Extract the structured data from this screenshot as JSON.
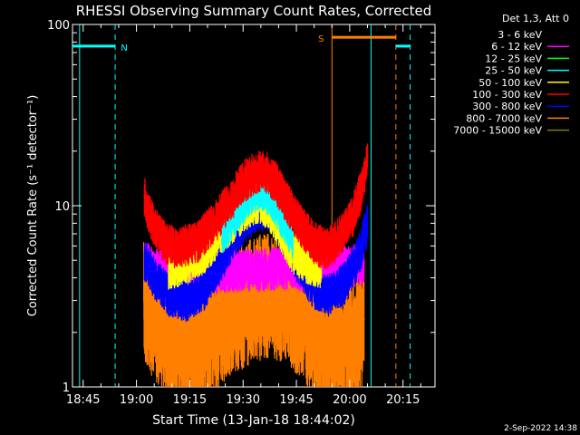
{
  "chart_data": {
    "type": "line",
    "title": "RHESSI Observing Summary Count Rates, Corrected",
    "xlabel": "Start Time (13-Jan-18 18:44:02)",
    "ylabel": "Corrected Count Rate (s⁻¹ detector⁻¹)",
    "x_unit": "minutes since 18:44:02 (axis labels show clock time)",
    "xlim": [
      "18:42",
      "20:24"
    ],
    "ylim": [
      1,
      100
    ],
    "y_scale": "log",
    "x_ticks": [
      "18:45",
      "19:00",
      "19:15",
      "19:30",
      "19:45",
      "20:00",
      "20:15"
    ],
    "y_ticks": [
      "1",
      "10",
      "100"
    ],
    "footer": "2-Sep-2022 14:38",
    "legend": {
      "header": "Det 1,3, Att 0",
      "placement": "top-right outside plot",
      "entries": [
        {
          "label": "3 - 6 keV",
          "color": "#000000"
        },
        {
          "label": "6 - 12 keV",
          "color": "#ff00ff"
        },
        {
          "label": "12 - 25 keV",
          "color": "#00ff00"
        },
        {
          "label": "25 - 50 keV",
          "color": "#00ffff"
        },
        {
          "label": "50 - 100 keV",
          "color": "#ffff00"
        },
        {
          "label": "100 - 300 keV",
          "color": "#ff0000"
        },
        {
          "label": "300 - 800 keV",
          "color": "#0000ff"
        },
        {
          "label": "800 - 7000 keV",
          "color": "#ff8000"
        },
        {
          "label": "7000 - 15000 keV",
          "color": "#808000"
        }
      ]
    },
    "markers": {
      "vertical_solid": [
        {
          "time": "18:44",
          "color": "#00ffff"
        },
        {
          "time": "19:55",
          "color": "#ff8000"
        },
        {
          "time": "20:06",
          "color": "#00ffff"
        }
      ],
      "vertical_dashed": [
        {
          "time": "18:54",
          "color": "#00ffff"
        },
        {
          "time": "20:13",
          "color": "#ff8000"
        },
        {
          "time": "20:17",
          "color": "#00ffff"
        }
      ],
      "bars": [
        {
          "label": "N",
          "from": "18:42",
          "to": "18:54",
          "value": 76,
          "color": "#00ffff"
        },
        {
          "label": "S",
          "from": "19:55",
          "to": "20:13",
          "value": 85,
          "color": "#ff8000"
        },
        {
          "label": "",
          "from": "20:13",
          "to": "20:17",
          "value": 76,
          "color": "#00ffff"
        }
      ]
    },
    "series": [
      {
        "name": "100 - 300 keV",
        "color": "#ff0000",
        "x": [
          18.2,
          19.0,
          21.0,
          24.0,
          28.0,
          33.0,
          38.0,
          43.0,
          46.0,
          49.0,
          51.0,
          53.0,
          55.0,
          58.0,
          62.0,
          66.0,
          69.0,
          72.0,
          75.0,
          77.0,
          79.5,
          81.0
        ],
        "y": [
          11.5,
          9.5,
          7.5,
          6.2,
          5.8,
          6.3,
          8.0,
          11.0,
          13.5,
          15.0,
          15.5,
          15.0,
          13.5,
          10.5,
          7.8,
          6.2,
          5.8,
          6.3,
          7.5,
          9.0,
          12.5,
          19.0
        ]
      },
      {
        "name": "300 - 800 keV",
        "color": "#0000ff",
        "x": [
          18.2,
          21.0,
          25.0,
          30.0,
          35.0,
          40.0,
          45.0,
          50.0,
          54.0,
          58.0,
          62.0,
          66.0,
          70.0,
          75.0,
          79.0,
          81.0
        ],
        "y": [
          5.0,
          4.0,
          3.2,
          3.0,
          3.4,
          5.0,
          7.5,
          9.5,
          9.0,
          6.5,
          4.5,
          3.5,
          3.2,
          3.8,
          5.5,
          8.0
        ]
      },
      {
        "name": "50 - 100 keV",
        "color": "#ffff00",
        "x": [
          25.0,
          30.0,
          35.0,
          40.0,
          44.0,
          48.0,
          51.0,
          54.0,
          57.0,
          60.0,
          64.0,
          68.0
        ],
        "y": [
          4.5,
          4.8,
          5.5,
          7.0,
          8.5,
          10.0,
          10.5,
          9.0,
          7.0,
          5.5,
          4.8,
          4.5
        ]
      },
      {
        "name": "25 - 50 keV",
        "color": "#00ffff",
        "x": [
          40.0,
          44.0,
          48.0,
          51.0,
          54.0,
          57.0,
          60.0
        ],
        "y": [
          7.0,
          9.0,
          11.5,
          12.5,
          11.0,
          8.5,
          6.5
        ]
      },
      {
        "name": "6 - 12 keV",
        "color": "#ff00ff",
        "x": [
          18.5,
          21.0,
          25.0,
          60.0,
          65.0,
          70.0,
          75.0,
          80.0
        ],
        "y": [
          4.8,
          4.5,
          4.2,
          4.5,
          4.3,
          4.4,
          4.6,
          4.8
        ]
      },
      {
        "name": "800 - 7000 keV",
        "color": "#ff8000",
        "x": [
          18.0,
          20.0,
          22.0,
          24.0,
          28.0,
          32.0,
          36.0,
          40.0,
          46.0,
          52.0,
          58.0,
          62.0,
          66.0,
          70.0,
          74.0,
          78.0,
          80.0
        ],
        "y": [
          3.0,
          2.6,
          2.3,
          2.0,
          1.7,
          1.6,
          1.8,
          2.3,
          2.8,
          3.2,
          3.0,
          2.5,
          1.8,
          1.7,
          1.6,
          1.8,
          2.4
        ]
      }
    ]
  }
}
